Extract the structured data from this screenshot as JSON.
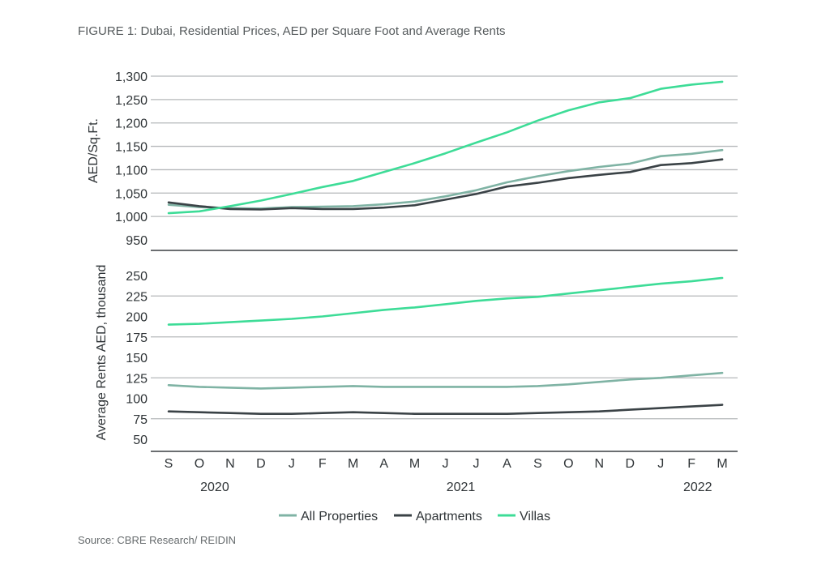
{
  "figure": {
    "title": "FIGURE 1: Dubai, Residential Prices, AED per Square Foot and Average Rents",
    "source": "Source: CBRE Research/ REIDIN"
  },
  "colors": {
    "all_properties": "#7fb3a4",
    "apartments": "#3a4246",
    "villas": "#3ddc97"
  },
  "chart_data": [
    {
      "type": "line",
      "id": "prices",
      "ylabel": "AED/Sq.Ft.",
      "ylim": [
        950,
        1300
      ],
      "yticks": [
        950,
        1000,
        1050,
        1100,
        1150,
        1200,
        1250,
        1300
      ],
      "ytick_labels": [
        "950",
        "1,000",
        "1,050",
        "1,100",
        "1,150",
        "1,200",
        "1,250",
        "1,300"
      ],
      "gridlines": [
        1000,
        1050,
        1100,
        1150,
        1200,
        1250,
        1300
      ],
      "categories": [
        "S",
        "O",
        "N",
        "D",
        "J",
        "F",
        "M",
        "A",
        "M",
        "J",
        "J",
        "A",
        "S",
        "O",
        "N",
        "D",
        "J",
        "F",
        "M"
      ],
      "series": [
        {
          "name": "All Properties",
          "color_key": "all_properties",
          "values": [
            1025,
            1020,
            1018,
            1017,
            1020,
            1021,
            1022,
            1026,
            1032,
            1043,
            1056,
            1073,
            1086,
            1097,
            1106,
            1113,
            1129,
            1134,
            1142
          ]
        },
        {
          "name": "Apartments",
          "color_key": "apartments",
          "values": [
            1030,
            1022,
            1016,
            1015,
            1018,
            1016,
            1016,
            1019,
            1024,
            1036,
            1048,
            1064,
            1072,
            1082,
            1089,
            1095,
            1110,
            1114,
            1122
          ]
        },
        {
          "name": "Villas",
          "color_key": "villas",
          "values": [
            1007,
            1011,
            1022,
            1034,
            1048,
            1063,
            1076,
            1095,
            1114,
            1135,
            1158,
            1180,
            1205,
            1227,
            1244,
            1253,
            1273,
            1282,
            1288
          ]
        }
      ]
    },
    {
      "type": "line",
      "id": "rents",
      "ylabel": "Average Rents AED, thousand",
      "ylim": [
        50,
        250
      ],
      "yticks": [
        50,
        75,
        100,
        125,
        150,
        175,
        200,
        225,
        250
      ],
      "ytick_labels": [
        "50",
        "75",
        "100",
        "125",
        "150",
        "175",
        "200",
        "225",
        "250"
      ],
      "gridlines": [
        75,
        125,
        175,
        225
      ],
      "categories": [
        "S",
        "O",
        "N",
        "D",
        "J",
        "F",
        "M",
        "A",
        "M",
        "J",
        "J",
        "A",
        "S",
        "O",
        "N",
        "D",
        "J",
        "F",
        "M"
      ],
      "series": [
        {
          "name": "All Properties",
          "color_key": "all_properties",
          "values": [
            116,
            114,
            113,
            112,
            113,
            114,
            115,
            114,
            114,
            114,
            114,
            114,
            115,
            117,
            120,
            123,
            125,
            128,
            131
          ]
        },
        {
          "name": "Apartments",
          "color_key": "apartments",
          "values": [
            84,
            83,
            82,
            81,
            81,
            82,
            83,
            82,
            81,
            81,
            81,
            81,
            82,
            83,
            84,
            86,
            88,
            90,
            92
          ]
        },
        {
          "name": "Villas",
          "color_key": "villas",
          "values": [
            190,
            191,
            193,
            195,
            197,
            200,
            204,
            208,
            211,
            215,
            219,
            222,
            224,
            228,
            232,
            236,
            240,
            243,
            247
          ]
        }
      ]
    }
  ],
  "x_axis": {
    "months": [
      "S",
      "O",
      "N",
      "D",
      "J",
      "F",
      "M",
      "A",
      "M",
      "J",
      "J",
      "A",
      "S",
      "O",
      "N",
      "D",
      "J",
      "F",
      "M"
    ],
    "years": [
      {
        "label": "2020",
        "center_index": 1.5
      },
      {
        "label": "2021",
        "center_index": 9.5
      },
      {
        "label": "2022",
        "center_index": 17.2
      }
    ]
  },
  "legend": {
    "position": "bottom-center",
    "items": [
      {
        "label": "All Properties",
        "color_key": "all_properties"
      },
      {
        "label": "Apartments",
        "color_key": "apartments"
      },
      {
        "label": "Villas",
        "color_key": "villas"
      }
    ]
  }
}
